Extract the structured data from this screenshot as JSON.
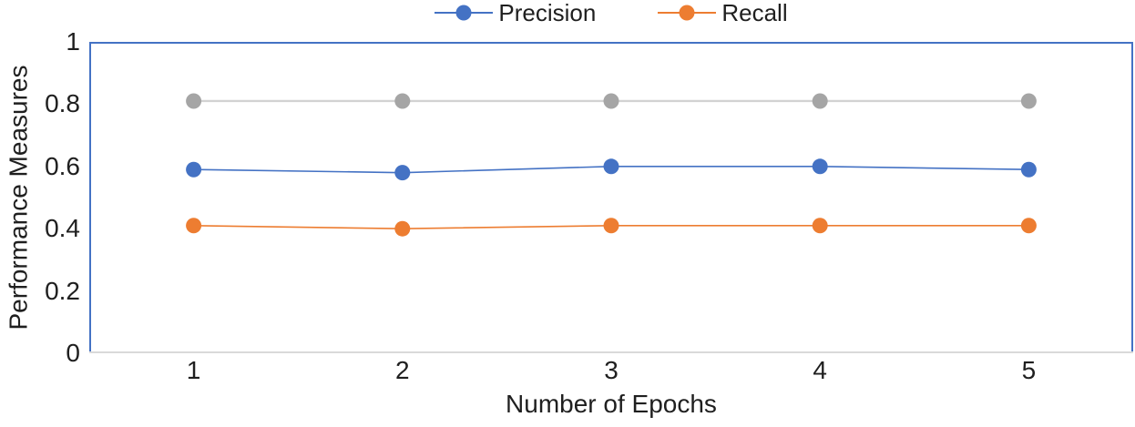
{
  "chart_data": {
    "type": "line",
    "categories": [
      "1",
      "2",
      "3",
      "4",
      "5"
    ],
    "series": [
      {
        "key": "precision",
        "name": "Precision",
        "color": "#4472C4",
        "line_color": "#4472C4",
        "line_width": 1.6,
        "marker_radius": 8.5,
        "values": [
          0.59,
          0.58,
          0.6,
          0.6,
          0.59
        ],
        "in_legend": true
      },
      {
        "key": "recall",
        "name": "Recall",
        "color": "#ED7D31",
        "line_color": "#ED7D31",
        "line_width": 1.6,
        "marker_radius": 8.5,
        "values": [
          0.41,
          0.4,
          0.41,
          0.41,
          0.41
        ],
        "in_legend": true
      },
      {
        "key": "gray",
        "name": "",
        "color": "#A5A5A5",
        "line_color": "#D2D2D2",
        "line_width": 2.4,
        "marker_radius": 8.5,
        "values": [
          0.81,
          0.81,
          0.81,
          0.81,
          0.81
        ],
        "in_legend": false
      }
    ],
    "xlabel": "Number of Epochs",
    "ylabel": "Performance Measures",
    "ylim": [
      0,
      1
    ],
    "ytick_values": [
      0,
      0.2,
      0.4,
      0.6,
      0.8,
      1
    ],
    "ytick_labels": [
      "0",
      "0.2",
      "0.4",
      "0.6",
      "0.8",
      "1"
    ],
    "legend_position": "top-center",
    "grid": false,
    "axis_frame_color": "#4472C4",
    "x_axis_line_color": "#D9D9D9",
    "text_color": "#1F1F1F",
    "background": "#FFFFFF"
  }
}
